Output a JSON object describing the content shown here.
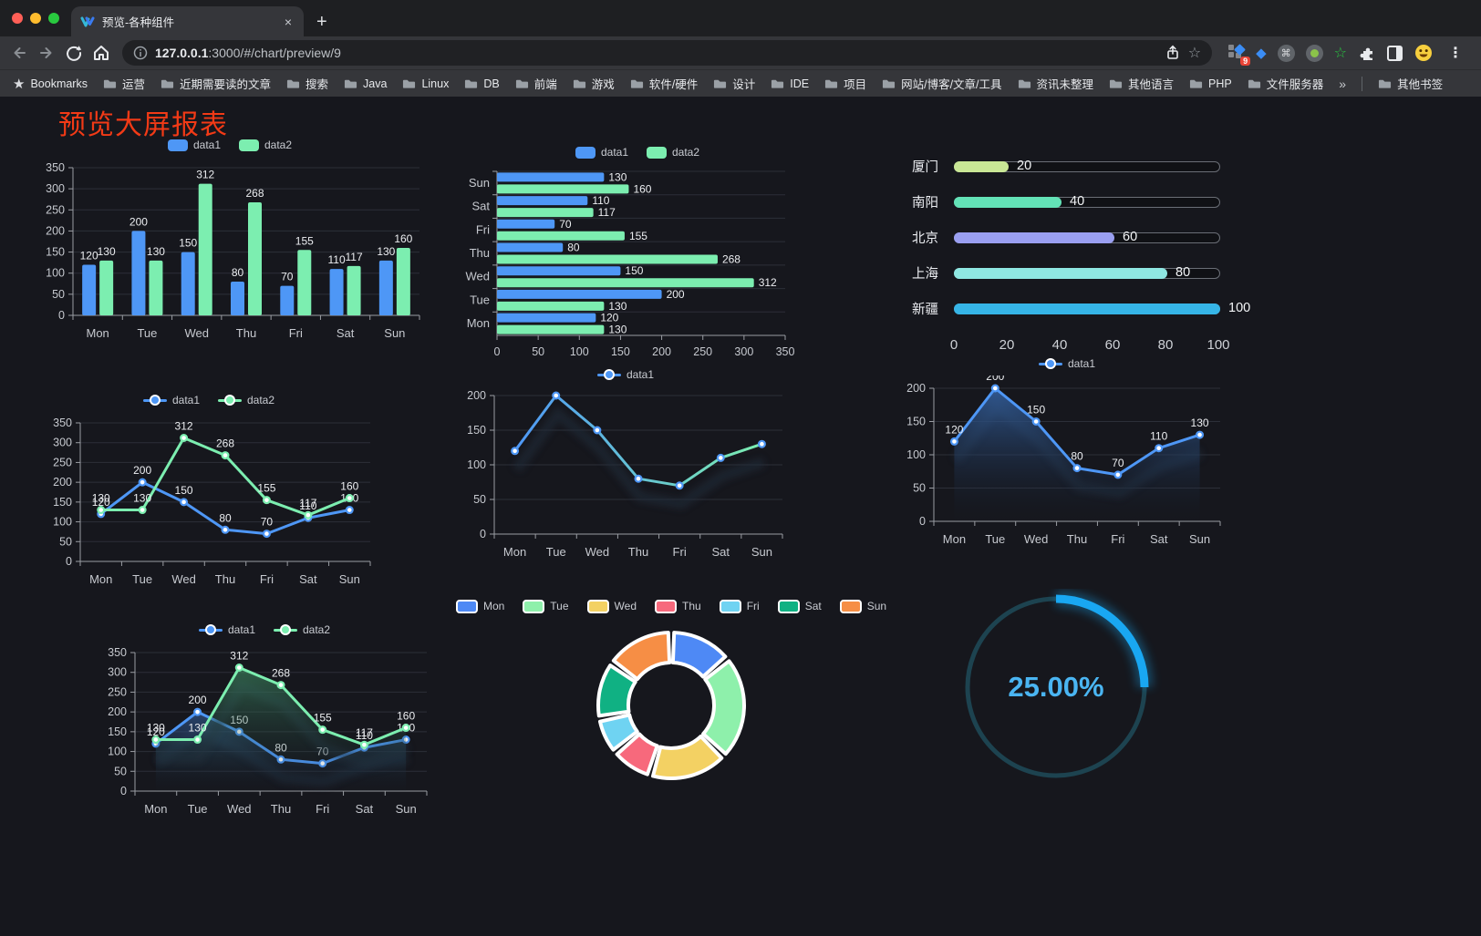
{
  "browser": {
    "tab_title": "预览-各种组件",
    "new_tab_label": "+",
    "close_label": "×",
    "url_host": "127.0.0.1",
    "url_rest": ":3000/#/chart/preview/9",
    "bookmarks_label": "Bookmarks",
    "bookmarks": [
      "运营",
      "近期需要读的文章",
      "搜索",
      "Java",
      "Linux",
      "DB",
      "前端",
      "游戏",
      "软件/硬件",
      "设计",
      "IDE",
      "项目",
      "网站/博客/文章/工具",
      "资讯未整理",
      "其他语言",
      "PHP",
      "文件服务器"
    ],
    "overflow_chevron": "»",
    "other_bookmarks": "其他书签",
    "extension_badge": "9",
    "menu_dots": "⋮"
  },
  "page": {
    "title": "预览大屏报表",
    "title_color": "#f23a16",
    "background": "#16171d"
  },
  "chart_data": [
    {
      "type": "bar",
      "legend": {
        "style": "rect",
        "items": [
          {
            "label": "data1",
            "color": "#4e97f6"
          },
          {
            "label": "data2",
            "color": "#7ceeb0"
          }
        ]
      },
      "categories": [
        "Mon",
        "Tue",
        "Wed",
        "Thu",
        "Fri",
        "Sat",
        "Sun"
      ],
      "series": [
        {
          "name": "data1",
          "color": "#4e97f6",
          "values": [
            120,
            200,
            150,
            80,
            70,
            110,
            130
          ]
        },
        {
          "name": "data2",
          "color": "#7ceeb0",
          "values": [
            130,
            130,
            312,
            268,
            155,
            117,
            160
          ]
        }
      ],
      "ylim": [
        0,
        350
      ],
      "ystep": 50,
      "show_labels": true,
      "grid": true
    },
    {
      "type": "hbar",
      "legend": {
        "style": "rect",
        "items": [
          {
            "label": "data1",
            "color": "#4e97f6"
          },
          {
            "label": "data2",
            "color": "#7ceeb0"
          }
        ]
      },
      "categories": [
        "Sun",
        "Sat",
        "Fri",
        "Thu",
        "Wed",
        "Tue",
        "Mon"
      ],
      "series": [
        {
          "name": "data1",
          "color": "#4e97f6",
          "values": [
            130,
            110,
            70,
            80,
            150,
            200,
            120
          ]
        },
        {
          "name": "data2",
          "color": "#7ceeb0",
          "values": [
            160,
            117,
            155,
            268,
            312,
            130,
            130
          ]
        }
      ],
      "xlim": [
        0,
        350
      ],
      "xstep": 50,
      "show_labels": true,
      "grid": true
    },
    {
      "type": "progress",
      "items": [
        {
          "label": "厦门",
          "value": 20,
          "color": "#c9e796"
        },
        {
          "label": "南阳",
          "value": 40,
          "color": "#63e2b7"
        },
        {
          "label": "北京",
          "value": 60,
          "color": "#9a9ff1"
        },
        {
          "label": "上海",
          "value": 80,
          "color": "#8fe7e2"
        },
        {
          "label": "新疆",
          "value": 100,
          "color": "#36b5e7"
        }
      ],
      "axis_ticks": [
        0,
        20,
        40,
        60,
        80,
        100
      ]
    },
    {
      "type": "line",
      "legend": {
        "style": "line",
        "items": [
          {
            "label": "data1",
            "color": "#4e97f6"
          },
          {
            "label": "data2",
            "color": "#7ceeb0"
          }
        ]
      },
      "categories": [
        "Mon",
        "Tue",
        "Wed",
        "Thu",
        "Fri",
        "Sat",
        "Sun"
      ],
      "series": [
        {
          "name": "data1",
          "color": "#4e97f6",
          "values": [
            120,
            200,
            150,
            80,
            70,
            110,
            130
          ]
        },
        {
          "name": "data2",
          "color": "#7ceeb0",
          "values": [
            130,
            130,
            312,
            268,
            155,
            117,
            160
          ]
        }
      ],
      "ylim": [
        0,
        350
      ],
      "ystep": 50,
      "show_labels": true
    },
    {
      "type": "line-gradient",
      "legend": {
        "style": "line",
        "items": [
          {
            "label": "data1",
            "color": "#4e97f6"
          }
        ]
      },
      "categories": [
        "Mon",
        "Tue",
        "Wed",
        "Thu",
        "Fri",
        "Sat",
        "Sun"
      ],
      "series": [
        {
          "name": "data1",
          "gradient": [
            "#4e97f6",
            "#7ceeb0"
          ],
          "color": "#4e97f6",
          "values": [
            120,
            200,
            150,
            80,
            70,
            110,
            130
          ]
        }
      ],
      "ylim": [
        0,
        200
      ],
      "ystep": 50,
      "show_labels": false,
      "shadow": true
    },
    {
      "type": "area",
      "legend": {
        "style": "line",
        "items": [
          {
            "label": "data1",
            "color": "#4e97f6"
          }
        ]
      },
      "categories": [
        "Mon",
        "Tue",
        "Wed",
        "Thu",
        "Fri",
        "Sat",
        "Sun"
      ],
      "series": [
        {
          "name": "data1",
          "color": "#4e97f6",
          "fill": "rgba(55,105,175,0.8)",
          "values": [
            120,
            200,
            150,
            80,
            70,
            110,
            130
          ]
        }
      ],
      "ylim": [
        0,
        200
      ],
      "ystep": 50,
      "show_labels": true,
      "shadow": true
    },
    {
      "type": "area",
      "legend": {
        "style": "line",
        "items": [
          {
            "label": "data1",
            "color": "#4e97f6"
          },
          {
            "label": "data2",
            "color": "#7ceeb0"
          }
        ]
      },
      "categories": [
        "Mon",
        "Tue",
        "Wed",
        "Thu",
        "Fri",
        "Sat",
        "Sun"
      ],
      "series": [
        {
          "name": "data1",
          "color": "#4e97f6",
          "fill": "rgba(60,110,180,0.55)",
          "values": [
            120,
            200,
            150,
            80,
            70,
            110,
            130
          ]
        },
        {
          "name": "data2",
          "color": "#7ceeb0",
          "fill": "rgba(70,160,110,0.55)",
          "values": [
            130,
            130,
            312,
            268,
            155,
            117,
            160
          ]
        }
      ],
      "ylim": [
        0,
        350
      ],
      "ystep": 50,
      "show_labels": true,
      "shadow": true
    },
    {
      "type": "pie",
      "legend": {
        "style": "rect-border",
        "items": [
          {
            "label": "Mon",
            "color": "#4e89f5"
          },
          {
            "label": "Tue",
            "color": "#8ef0ab"
          },
          {
            "label": "Wed",
            "color": "#f3d163"
          },
          {
            "label": "Thu",
            "color": "#f7697c"
          },
          {
            "label": "Fri",
            "color": "#6fd3f2"
          },
          {
            "label": "Sat",
            "color": "#10b183"
          },
          {
            "label": "Sun",
            "color": "#f68e45"
          }
        ]
      },
      "items": [
        {
          "name": "Mon",
          "value": 120,
          "color": "#4e89f5"
        },
        {
          "name": "Tue",
          "value": 200,
          "color": "#8ef0ab"
        },
        {
          "name": "Wed",
          "value": 150,
          "color": "#f3d163"
        },
        {
          "name": "Thu",
          "value": 80,
          "color": "#f7697c"
        },
        {
          "name": "Fri",
          "value": 70,
          "color": "#6fd3f2"
        },
        {
          "name": "Sat",
          "value": 110,
          "color": "#10b183"
        },
        {
          "name": "Sun",
          "value": 130,
          "color": "#f68e45"
        }
      ]
    },
    {
      "type": "gauge",
      "value_text": "25.00%",
      "percent": 25,
      "color": "#19a7f2",
      "track_color": "#1d4350",
      "text_color": "#4ab5f2"
    }
  ]
}
